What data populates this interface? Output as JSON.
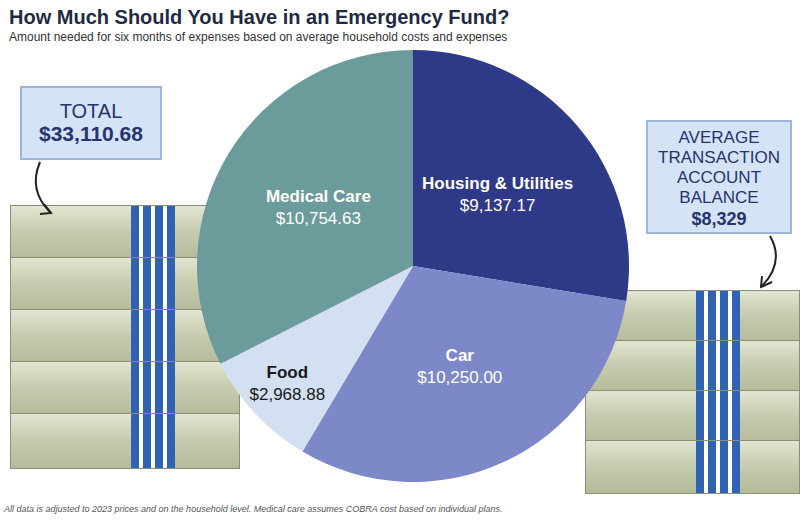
{
  "chart_data": {
    "type": "pie",
    "title": "How Much Should You Have in an Emergency Fund?",
    "subtitle": "Amount needed for six months of expenses based on average household costs and expenses",
    "categories": [
      "Housing & Utilities",
      "Car",
      "Food",
      "Medical Care"
    ],
    "values": [
      9137.17,
      10250.0,
      2968.88,
      10754.63
    ],
    "value_labels": [
      "$9,137.17",
      "$10,250.00",
      "$2,968.88",
      "$10,754.63"
    ],
    "colors": [
      "#2e3987",
      "#7d88c9",
      "#d3e0f2",
      "#6b9b9a"
    ],
    "data_labels": true,
    "annotations": [
      {
        "title": "TOTAL",
        "text": "$33,110.68"
      },
      {
        "title": "AVERAGE TRANSACTION ACCOUNT BALANCE",
        "text": "$8,329"
      }
    ],
    "note": "All data is adjusted to 2023 prices and on the household level. Medical care assumes COBRA cost based on individual plans."
  }
}
